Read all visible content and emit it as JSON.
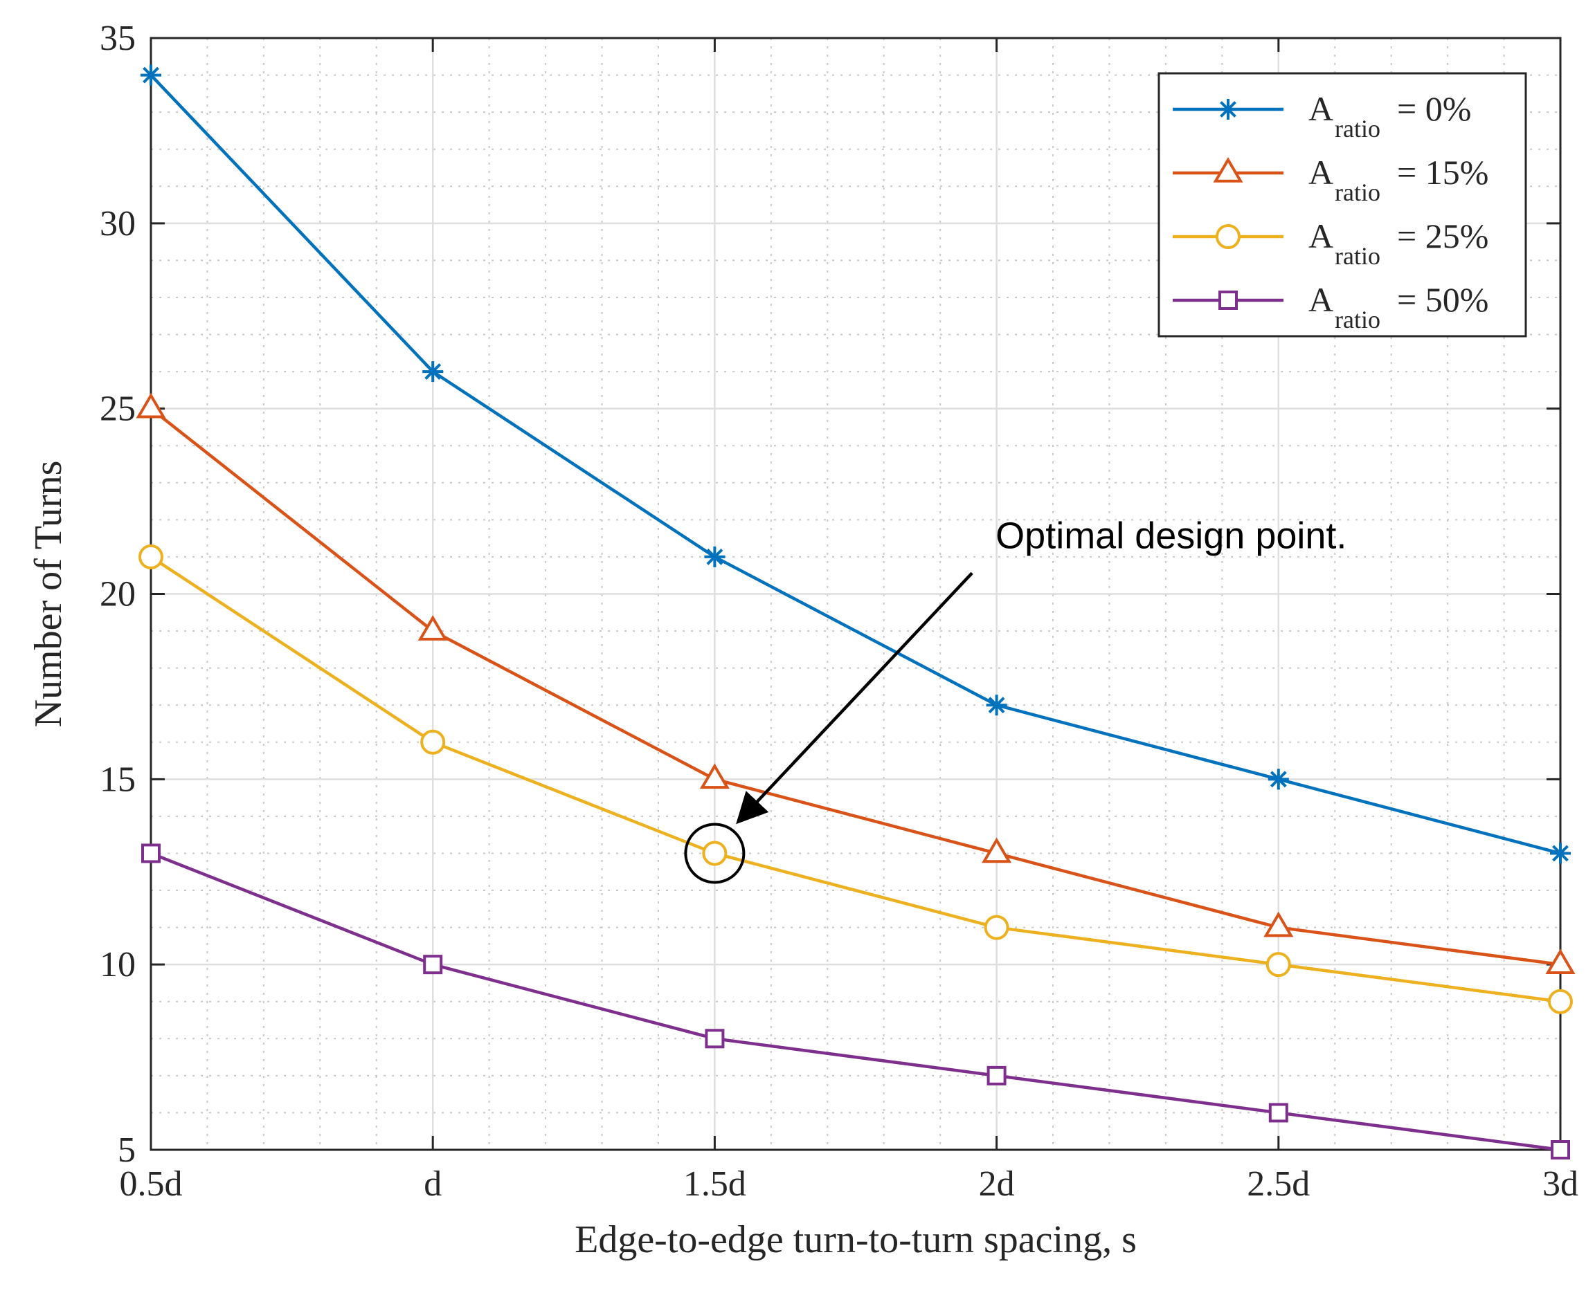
{
  "chart_data": {
    "type": "line",
    "x": [
      0.5,
      1,
      1.5,
      2,
      2.5,
      3
    ],
    "categories": [
      "0.5d",
      "d",
      "1.5d",
      "2d",
      "2.5d",
      "3d"
    ],
    "series": [
      {
        "name": "A_ratio = 0%",
        "legend_main": "A",
        "legend_sub": "ratio",
        "legend_suffix": " = 0%",
        "color": "#0072BD",
        "marker": "asterisk",
        "values": [
          34,
          26,
          21,
          17,
          15,
          13
        ]
      },
      {
        "name": "A_ratio = 15%",
        "legend_main": "A",
        "legend_sub": "ratio",
        "legend_suffix": " = 15%",
        "color": "#D95319",
        "marker": "triangle",
        "values": [
          25,
          19,
          15,
          13,
          11,
          10
        ]
      },
      {
        "name": "A_ratio = 25%",
        "legend_main": "A",
        "legend_sub": "ratio",
        "legend_suffix": " = 25%",
        "color": "#EDB120",
        "marker": "circle",
        "values": [
          21,
          16,
          13,
          11,
          10,
          9
        ]
      },
      {
        "name": "A_ratio = 50%",
        "legend_main": "A",
        "legend_sub": "ratio",
        "legend_suffix": " = 50%",
        "color": "#7E2F8E",
        "marker": "square",
        "values": [
          13,
          10,
          8,
          7,
          6,
          5
        ]
      }
    ],
    "xlabel": "Edge-to-edge turn-to-turn spacing, s",
    "ylabel": "Number of Turns",
    "xlim": [
      0.5,
      3
    ],
    "ylim": [
      5,
      35
    ],
    "yticks": [
      5,
      10,
      15,
      20,
      25,
      30,
      35
    ],
    "yticklabels": [
      "5",
      "10",
      "15",
      "20",
      "25",
      "30",
      "35"
    ],
    "grid": true,
    "minor_grid": true,
    "legend_position": "top-right",
    "annotation": {
      "text": "Optimal design point.",
      "point_x": 1.5,
      "point_y": 13,
      "text_x": 1.9,
      "text_y": 20.9
    }
  }
}
